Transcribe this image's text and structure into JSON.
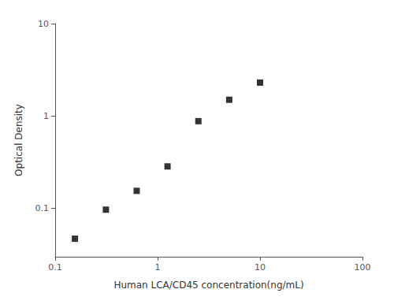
{
  "chart_data": {
    "type": "scatter",
    "x_label": "Human LCA/CD45 concentration(ng/mL)",
    "y_label": "Optical Density",
    "x": [
      0.156,
      0.313,
      0.625,
      1.25,
      2.5,
      5.0,
      10.0
    ],
    "values": [
      0.047,
      0.097,
      0.155,
      0.285,
      0.88,
      1.5,
      2.3
    ],
    "color": "black",
    "marker": "square",
    "log": true,
    "xlim": [
      0.1,
      100
    ],
    "ylim": [
      0.03,
      10
    ],
    "xticks": [
      0.1,
      1,
      10,
      100
    ],
    "yticks": [
      0.1,
      1,
      10
    ],
    "grid": false
  }
}
